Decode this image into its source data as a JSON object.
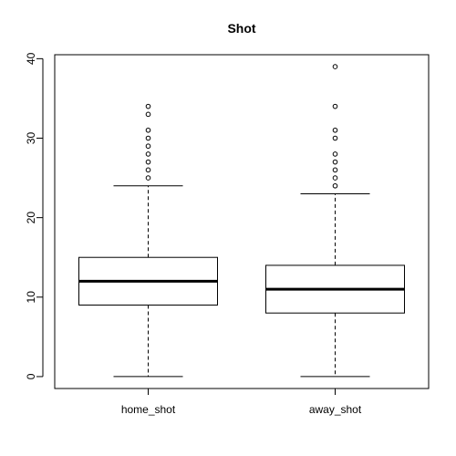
{
  "chart_data": {
    "type": "boxplot",
    "title": "Shot",
    "xlabel": "",
    "ylabel": "",
    "ylim": [
      -1.5,
      40.5
    ],
    "yticks": [
      0,
      10,
      20,
      30,
      40
    ],
    "grid": false,
    "categories": [
      "home_shot",
      "away_shot"
    ],
    "boxes": [
      {
        "label": "home_shot",
        "whisker_low": 0,
        "q1": 9,
        "median": 12,
        "q3": 15,
        "whisker_high": 24,
        "outliers": [
          25,
          26,
          27,
          28,
          29,
          30,
          31,
          33,
          34
        ]
      },
      {
        "label": "away_shot",
        "whisker_low": 0,
        "q1": 8,
        "median": 11,
        "q3": 14,
        "whisker_high": 23,
        "outliers": [
          24,
          25,
          26,
          27,
          28,
          30,
          31,
          34,
          39
        ]
      }
    ]
  }
}
